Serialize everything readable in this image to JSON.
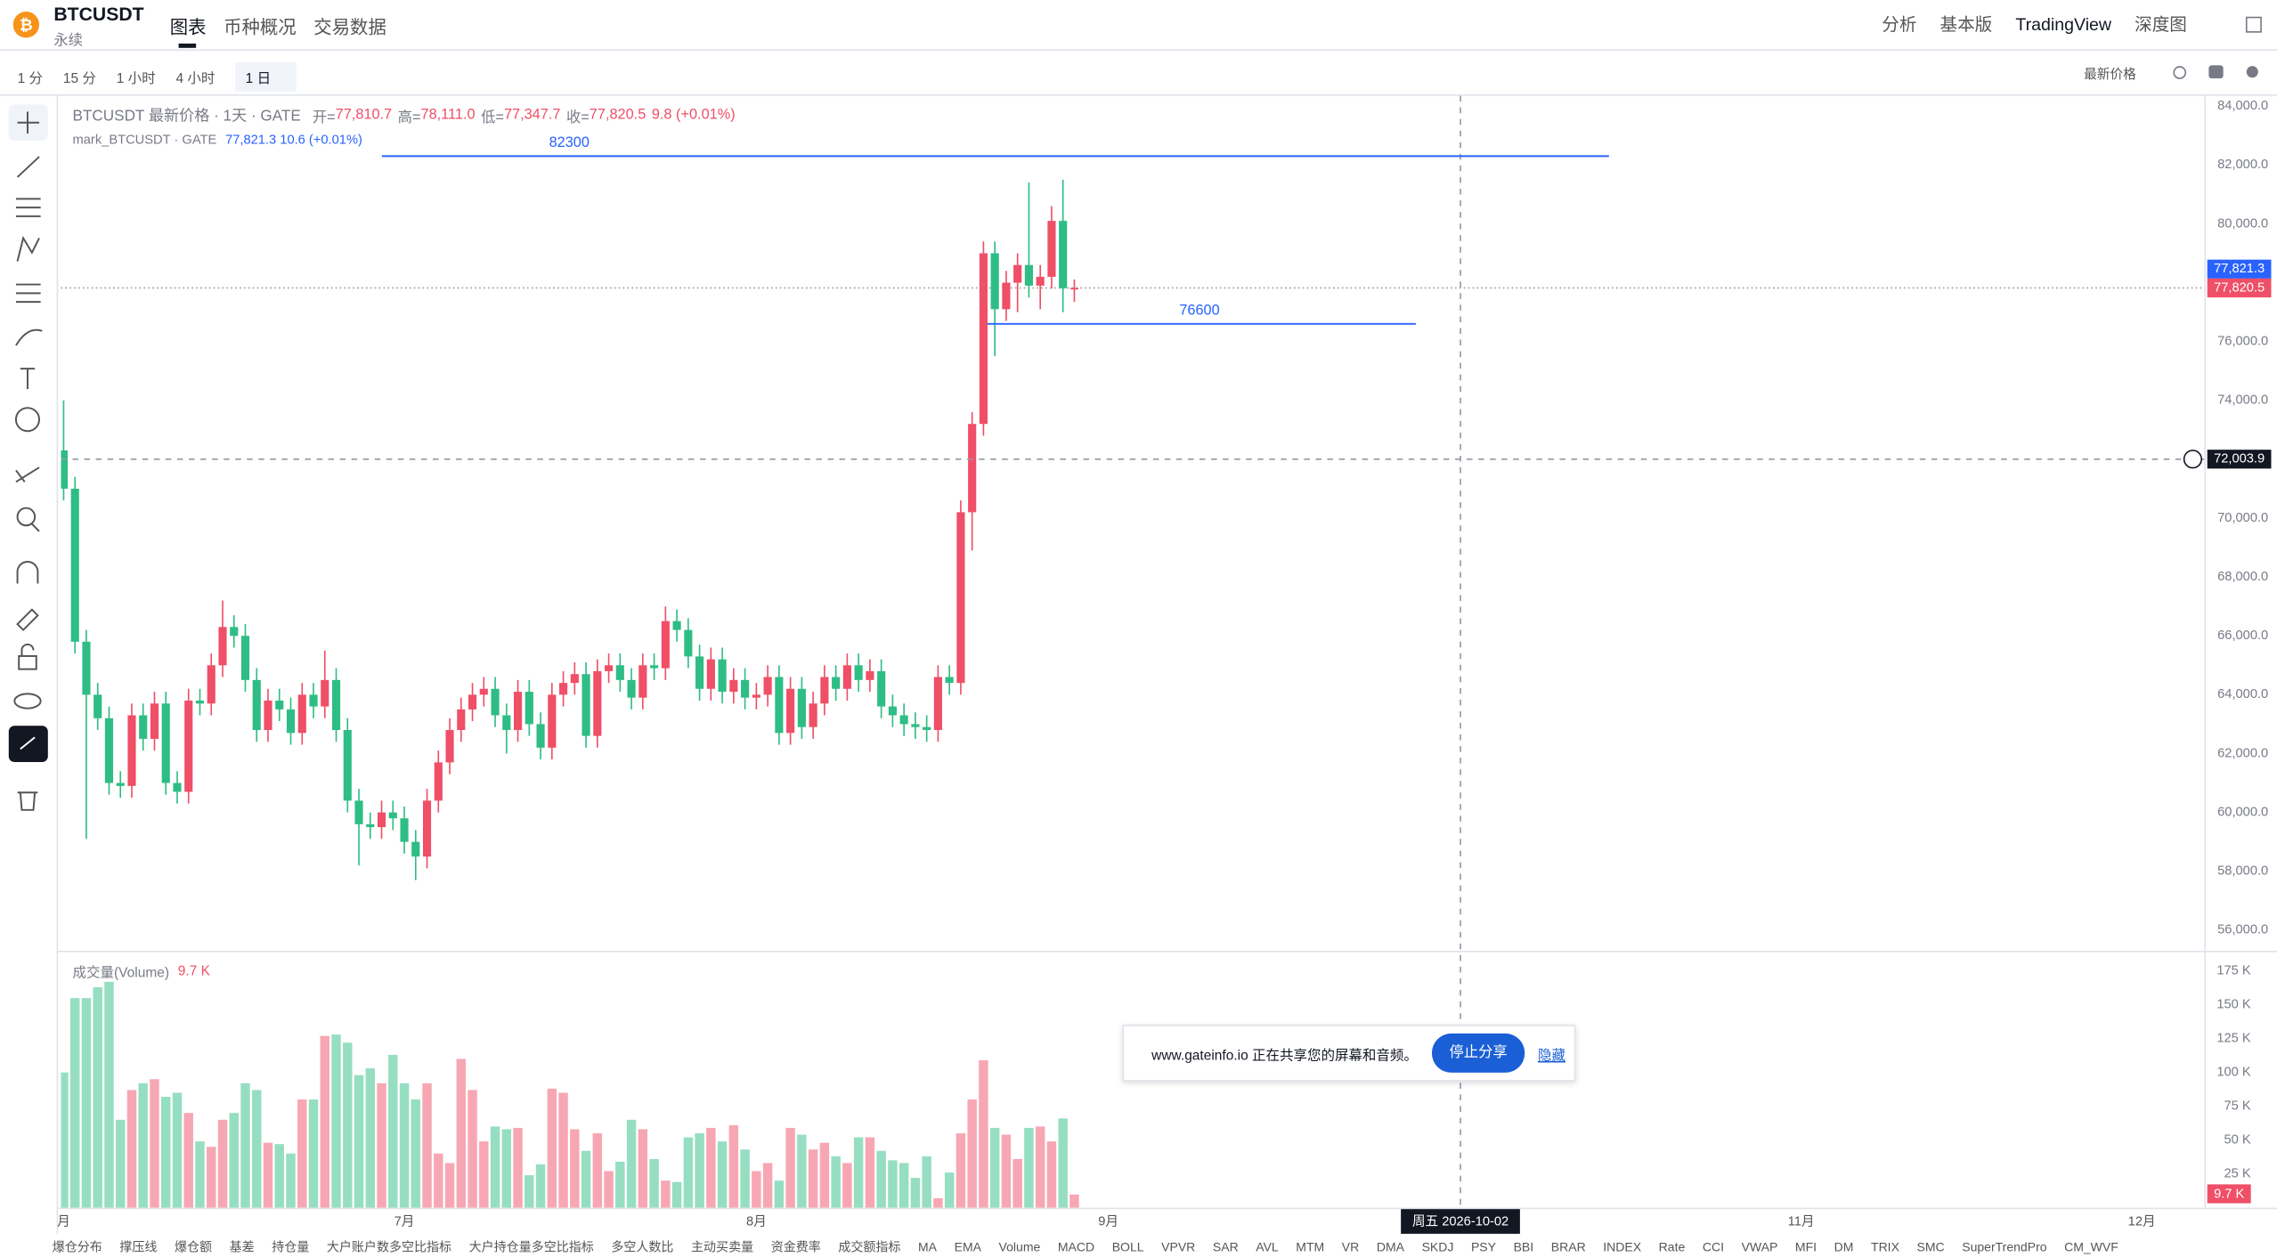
{
  "header": {
    "symbol": "BTCUSDT",
    "contract": "永续",
    "tabs": [
      "图表",
      "币种概况",
      "交易数据"
    ],
    "right_links": [
      "分析",
      "基本版",
      "TradingView",
      "深度图"
    ]
  },
  "toolbar": {
    "intervals": [
      "1 分",
      "15 分",
      "1 小时",
      "4 小时",
      "1 日"
    ],
    "price_source": "最新价格"
  },
  "legend": {
    "title": "BTCUSDT 最新价格 · 1天 · GATE",
    "fields": [
      {
        "label": "开=",
        "value": "77,810.7"
      },
      {
        "label": "高=",
        "value": "78,111.0"
      },
      {
        "label": "低=",
        "value": "77,347.7"
      },
      {
        "label": "收=",
        "value": "77,820.5"
      }
    ],
    "change": "9.8 (+0.01%)",
    "mark_name": "mark_BTCUSDT · GATE",
    "mark_value": "77,821.3 10.6 (+0.01%)"
  },
  "chart_data": {
    "type": "candlestick",
    "up_color": "#ef4f67",
    "down_color": "#2ebd85",
    "x": [
      "2026-06-01",
      "2026-06-02",
      "2026-06-03",
      "2026-06-04",
      "2026-06-05",
      "2026-06-06",
      "2026-06-07",
      "2026-06-08",
      "2026-06-09",
      "2026-06-10",
      "2026-06-11",
      "2026-06-12",
      "2026-06-13",
      "2026-06-14",
      "2026-06-15",
      "2026-06-16",
      "2026-06-17",
      "2026-06-18",
      "2026-06-19",
      "2026-06-20",
      "2026-06-21",
      "2026-06-22",
      "2026-06-23",
      "2026-06-24",
      "2026-06-25",
      "2026-06-26",
      "2026-06-27",
      "2026-06-28",
      "2026-06-29",
      "2026-06-30",
      "2026-07-01",
      "2026-07-02",
      "2026-07-03",
      "2026-07-04",
      "2026-07-05",
      "2026-07-06",
      "2026-07-07",
      "2026-07-08",
      "2026-07-09",
      "2026-07-10",
      "2026-07-11",
      "2026-07-12",
      "2026-07-13",
      "2026-07-14",
      "2026-07-15",
      "2026-07-16",
      "2026-07-17",
      "2026-07-18",
      "2026-07-19",
      "2026-07-20",
      "2026-07-21",
      "2026-07-22",
      "2026-07-23",
      "2026-07-24",
      "2026-07-25",
      "2026-07-26",
      "2026-07-27",
      "2026-07-28",
      "2026-07-29",
      "2026-07-30",
      "2026-07-31",
      "2026-08-01",
      "2026-08-02",
      "2026-08-03",
      "2026-08-04",
      "2026-08-05",
      "2026-08-06",
      "2026-08-07",
      "2026-08-08",
      "2026-08-09",
      "2026-08-10",
      "2026-08-11",
      "2026-08-12",
      "2026-08-13",
      "2026-08-14",
      "2026-08-15",
      "2026-08-16",
      "2026-08-17",
      "2026-08-18",
      "2026-08-19",
      "2026-08-20",
      "2026-08-21",
      "2026-08-22",
      "2026-08-23",
      "2026-08-24",
      "2026-08-25",
      "2026-08-26",
      "2026-08-27",
      "2026-08-28",
      "2026-08-29"
    ],
    "series": [
      {
        "name": "BTCUSDT",
        "values": [
          [
            72300,
            74000,
            70600,
            71000
          ],
          [
            71000,
            71400,
            65400,
            65800
          ],
          [
            65800,
            66200,
            59100,
            64000
          ],
          [
            64000,
            64400,
            62800,
            63200
          ],
          [
            63200,
            63600,
            60600,
            61000
          ],
          [
            61000,
            61400,
            60500,
            60900
          ],
          [
            60900,
            63700,
            60500,
            63300
          ],
          [
            63300,
            63700,
            62100,
            62500
          ],
          [
            62500,
            64100,
            62100,
            63700
          ],
          [
            63700,
            64100,
            60600,
            61000
          ],
          [
            61000,
            61400,
            60300,
            60700
          ],
          [
            60700,
            64200,
            60300,
            63800
          ],
          [
            63800,
            64200,
            63300,
            63700
          ],
          [
            63700,
            65400,
            63300,
            65000
          ],
          [
            65000,
            67200,
            64600,
            66300
          ],
          [
            66300,
            66700,
            65600,
            66000
          ],
          [
            66000,
            66400,
            64100,
            64500
          ],
          [
            64500,
            64900,
            62400,
            62800
          ],
          [
            62800,
            64200,
            62400,
            63800
          ],
          [
            63800,
            64200,
            63100,
            63500
          ],
          [
            63500,
            63900,
            62300,
            62700
          ],
          [
            62700,
            64400,
            62300,
            64000
          ],
          [
            64000,
            64400,
            63200,
            63600
          ],
          [
            63600,
            65500,
            63200,
            64500
          ],
          [
            64500,
            64900,
            62400,
            62800
          ],
          [
            62800,
            63200,
            60000,
            60400
          ],
          [
            60400,
            60800,
            58200,
            59600
          ],
          [
            59600,
            60000,
            59100,
            59500
          ],
          [
            59500,
            60400,
            59100,
            60000
          ],
          [
            60000,
            60400,
            59400,
            59800
          ],
          [
            59800,
            60200,
            58600,
            59000
          ],
          [
            59000,
            59400,
            57700,
            58500
          ],
          [
            58500,
            60800,
            58100,
            60400
          ],
          [
            60400,
            62100,
            60000,
            61700
          ],
          [
            61700,
            63200,
            61300,
            62800
          ],
          [
            62800,
            63900,
            62400,
            63500
          ],
          [
            63500,
            64400,
            63100,
            64000
          ],
          [
            64000,
            64600,
            63600,
            64200
          ],
          [
            64200,
            64600,
            62900,
            63300
          ],
          [
            63300,
            63700,
            62000,
            62800
          ],
          [
            62800,
            64500,
            62400,
            64100
          ],
          [
            64100,
            64500,
            62600,
            63000
          ],
          [
            63000,
            63400,
            61800,
            62200
          ],
          [
            62200,
            64400,
            61800,
            64000
          ],
          [
            64000,
            64800,
            63600,
            64400
          ],
          [
            64400,
            65100,
            64000,
            64700
          ],
          [
            64700,
            65100,
            62200,
            62600
          ],
          [
            62600,
            65200,
            62200,
            64800
          ],
          [
            64800,
            65400,
            64400,
            65000
          ],
          [
            65000,
            65400,
            64100,
            64500
          ],
          [
            64500,
            64900,
            63500,
            63900
          ],
          [
            63900,
            65400,
            63500,
            65000
          ],
          [
            65000,
            65400,
            64500,
            64900
          ],
          [
            64900,
            67000,
            64500,
            66500
          ],
          [
            66500,
            66900,
            65800,
            66200
          ],
          [
            66200,
            66600,
            64900,
            65300
          ],
          [
            65300,
            65700,
            63800,
            64200
          ],
          [
            64200,
            65600,
            63800,
            65200
          ],
          [
            65200,
            65600,
            63700,
            64100
          ],
          [
            64100,
            64900,
            63700,
            64500
          ],
          [
            64500,
            64900,
            63500,
            63900
          ],
          [
            63900,
            64400,
            63500,
            64000
          ],
          [
            64000,
            65000,
            63600,
            64600
          ],
          [
            64600,
            65000,
            62300,
            62700
          ],
          [
            62700,
            64600,
            62300,
            64200
          ],
          [
            64200,
            64600,
            62500,
            62900
          ],
          [
            62900,
            64100,
            62500,
            63700
          ],
          [
            63700,
            65000,
            63300,
            64600
          ],
          [
            64600,
            65000,
            63800,
            64200
          ],
          [
            64200,
            65400,
            63800,
            65000
          ],
          [
            65000,
            65400,
            64100,
            64500
          ],
          [
            64500,
            65200,
            64100,
            64800
          ],
          [
            64800,
            65200,
            63200,
            63600
          ],
          [
            63600,
            64000,
            62900,
            63300
          ],
          [
            63300,
            63700,
            62600,
            63000
          ],
          [
            63000,
            63400,
            62500,
            62900
          ],
          [
            62900,
            63300,
            62400,
            62800
          ],
          [
            62800,
            65000,
            62400,
            64600
          ],
          [
            64600,
            65000,
            64000,
            64400
          ],
          [
            64400,
            70600,
            64000,
            70200
          ],
          [
            70200,
            73600,
            68900,
            73200
          ],
          [
            73200,
            79400,
            72800,
            79000
          ],
          [
            79000,
            79400,
            75500,
            77100
          ],
          [
            77100,
            78400,
            76700,
            78000
          ],
          [
            78000,
            79000,
            77000,
            78600
          ],
          [
            78600,
            81400,
            77500,
            77900
          ],
          [
            77900,
            78600,
            77100,
            78200
          ],
          [
            78200,
            80600,
            77800,
            80100
          ],
          [
            80100,
            81500,
            77000,
            77810.7
          ],
          [
            77810.7,
            78111,
            77347.7,
            77820.5
          ]
        ]
      }
    ],
    "xlim": [
      "2026-05-31",
      "2026-12-06"
    ],
    "xticks": [
      {
        "value": "2026-06-01",
        "label": "月"
      },
      {
        "value": "2026-07-01",
        "label": "7月"
      },
      {
        "value": "2026-08-01",
        "label": "8月"
      },
      {
        "value": "2026-09-01",
        "label": "9月"
      },
      {
        "value": "2026-11-01",
        "label": "11月"
      },
      {
        "value": "2026-12-01",
        "label": "12月"
      }
    ],
    "ylim": [
      55300,
      84350
    ],
    "yticks": [
      {
        "value": 84000,
        "label": "84,000.0"
      },
      {
        "value": 82000,
        "label": "82,000.0"
      },
      {
        "value": 80000,
        "label": "80,000.0"
      },
      {
        "value": 78000,
        "label": "78,000.0"
      },
      {
        "value": 76000,
        "label": "76,000.0"
      },
      {
        "value": 74000,
        "label": "74,000.0"
      },
      {
        "value": 72000,
        "label": "72,000.0"
      },
      {
        "value": 70000,
        "label": "70,000.0"
      },
      {
        "value": 68000,
        "label": "68,000.0"
      },
      {
        "value": 66000,
        "label": "66,000.0"
      },
      {
        "value": 64000,
        "label": "64,000.0"
      },
      {
        "value": 62000,
        "label": "62,000.0"
      },
      {
        "value": 60000,
        "label": "60,000.0"
      },
      {
        "value": 58000,
        "label": "58,000.0"
      },
      {
        "value": 56000,
        "label": "56,000.0"
      }
    ],
    "grid": false,
    "hlines": [
      {
        "value": 82300,
        "color": "#2962ff"
      },
      {
        "value": 76600,
        "color": "#2962ff"
      }
    ],
    "mark_price": {
      "value": 77821.3,
      "label": "77,821.3",
      "color": "#2962ff"
    },
    "last_price": {
      "value": 77820.5,
      "label": "77,820.5",
      "color": "#ef4f67"
    },
    "crosshair": {
      "x": "2026-10-02",
      "x_label": "周五 2026-10-02",
      "y": {
        "value": 72003.9,
        "label": "72,003.9"
      }
    },
    "volume": {
      "title": "成交量(Volume)",
      "last_label": "9.7 K",
      "ylim": [
        0,
        190000
      ],
      "yticks": [
        {
          "value": 175000,
          "label": "175 K"
        },
        {
          "value": 150000,
          "label": "150 K"
        },
        {
          "value": 125000,
          "label": "125 K"
        },
        {
          "value": 100000,
          "label": "100 K"
        },
        {
          "value": 75000,
          "label": "75 K"
        },
        {
          "value": 50000,
          "label": "50 K"
        },
        {
          "value": 25000,
          "label": "25 K"
        }
      ],
      "values": [
        100000,
        155000,
        155000,
        163000,
        167000,
        65000,
        87000,
        92000,
        95000,
        82000,
        85000,
        70000,
        49000,
        45000,
        65000,
        70000,
        92000,
        87000,
        48000,
        47000,
        40000,
        80000,
        80000,
        127000,
        128000,
        122000,
        98000,
        103000,
        92000,
        113000,
        92000,
        80000,
        92000,
        40000,
        33000,
        110000,
        87000,
        49000,
        60000,
        58000,
        59000,
        24000,
        32000,
        88000,
        85000,
        58000,
        42000,
        55000,
        27000,
        34000,
        65000,
        58000,
        36000,
        20000,
        19000,
        52000,
        55000,
        59000,
        49000,
        61000,
        43000,
        27000,
        33000,
        20000,
        59000,
        54000,
        43000,
        48000,
        38000,
        33000,
        52000,
        52000,
        42000,
        35000,
        33000,
        22000,
        38000,
        7000,
        26000,
        55000,
        80000,
        109000,
        59000,
        54000,
        36000,
        59000,
        60000,
        49000,
        66000,
        9700
      ]
    }
  },
  "share_banner": {
    "message": "www.gateinfo.io 正在共享您的屏幕和音频。",
    "stop": "停止分享",
    "hide": "隐藏"
  },
  "indicator_tabs": [
    "爆仓分布",
    "撑压线",
    "爆仓额",
    "基差",
    "持仓量",
    "大户账户数多空比指标",
    "大户持仓量多空比指标",
    "多空人数比",
    "主动买卖量",
    "资金费率",
    "成交额指标",
    "MA",
    "EMA",
    "Volume",
    "MACD",
    "BOLL",
    "VPVR",
    "SAR",
    "AVL",
    "MTM",
    "VR",
    "DMA",
    "SKDJ",
    "PSY",
    "BBI",
    "BRAR",
    "INDEX",
    "Rate",
    "CCI",
    "VWAP",
    "MFI",
    "DM",
    "TRIX",
    "SMC",
    "SuperTrendPro",
    "CM_WVF"
  ]
}
